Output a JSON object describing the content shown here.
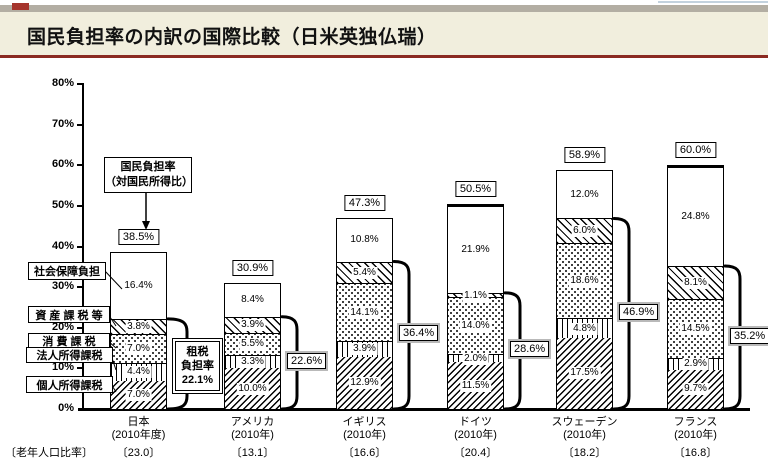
{
  "page": {
    "title": "国民負担率の内訳の国際比較（日米英独仏瑞）"
  },
  "colors": {
    "header_bg": "#f1eedd",
    "header_rule": "#8b2a22",
    "top_strip": "#b3aea3",
    "red_chip": "#a5342c",
    "ink": "#000000"
  },
  "chart_data": {
    "type": "bar",
    "stacked": true,
    "grid": false,
    "unit": "%",
    "ylim": [
      0,
      80
    ],
    "y_tick_labels": [
      "0%",
      "10%",
      "20%",
      "30%",
      "40%",
      "50%",
      "60%",
      "70%",
      "80%"
    ],
    "segments": [
      {
        "label": "個人所得課税",
        "pattern": "diag-up"
      },
      {
        "label": "法人所得課税",
        "pattern": "vertical"
      },
      {
        "label": "消 費 課 税",
        "pattern": "dots"
      },
      {
        "label": "資 産 課 税 等",
        "pattern": "diag-down"
      },
      {
        "label": "社会保障負担",
        "pattern": "plain"
      }
    ],
    "countries": [
      {
        "name": "日本",
        "year": "(2010年度)",
        "elderly_ratio": "〔23.0〕",
        "total_label": "38.5%",
        "values": [
          7.0,
          4.4,
          7.0,
          3.8,
          16.4
        ],
        "tax_burden_label": "22.1%",
        "thick_divider": false
      },
      {
        "name": "アメリカ",
        "year": "(2010年)",
        "elderly_ratio": "〔13.1〕",
        "total_label": "30.9%",
        "values": [
          10.0,
          3.3,
          5.5,
          3.9,
          8.4
        ],
        "tax_burden_label": "22.6%",
        "thick_divider": false
      },
      {
        "name": "イギリス",
        "year": "(2010年)",
        "elderly_ratio": "〔16.6〕",
        "total_label": "47.3%",
        "values": [
          12.9,
          3.9,
          14.1,
          5.4,
          10.8
        ],
        "tax_burden_label": "36.4%",
        "thick_divider": false
      },
      {
        "name": "ドイツ",
        "year": "(2010年)",
        "elderly_ratio": "〔20.4〕",
        "total_label": "50.5%",
        "values": [
          11.5,
          2.0,
          14.0,
          1.1,
          21.9
        ],
        "tax_burden_label": "28.6%",
        "thick_divider": true
      },
      {
        "name": "スウェーデン",
        "year": "(2010年)",
        "elderly_ratio": "〔18.2〕",
        "total_label": "58.9%",
        "values": [
          17.5,
          4.8,
          18.6,
          6.0,
          12.0
        ],
        "tax_burden_label": "46.9%",
        "thick_divider": false
      },
      {
        "name": "フランス",
        "year": "(2010年)",
        "elderly_ratio": "〔16.8〕",
        "total_label": "60.0%",
        "values": [
          9.7,
          2.9,
          14.5,
          8.1,
          24.8
        ],
        "tax_burden_label": "35.2%",
        "thick_divider": true
      }
    ],
    "annotation_box": {
      "line1": "国民負担率",
      "line2": "（対国民所得比）"
    },
    "japan_tax_box": {
      "line1": "租税",
      "line2": "負担率",
      "value": "22.1%"
    },
    "elderly_caption": "〔老年人口比率〕"
  }
}
